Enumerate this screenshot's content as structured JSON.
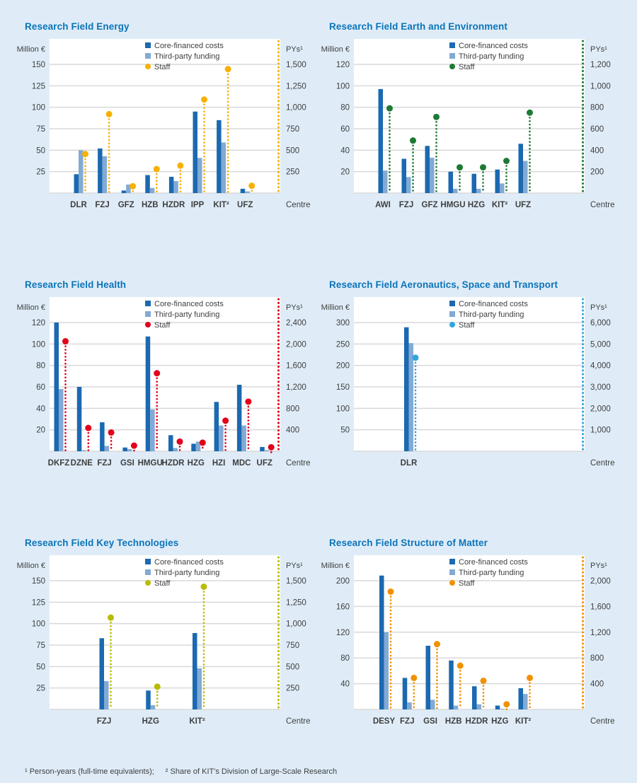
{
  "colors": {
    "page_background": "#dfecf8",
    "plot_background": "#ffffff",
    "grid": "#d9d9d9",
    "core_bar": "#1b69b0",
    "third_bar": "#82aad5",
    "title": "#0b74b8",
    "text": "#3e3e3e"
  },
  "legend": {
    "core": "Core-financed costs",
    "third": "Third-party funding",
    "staff": "Staff"
  },
  "axes": {
    "left": "Million €",
    "right": "PYs¹",
    "x": "Centre"
  },
  "footnote": {
    "part1": "¹ Person-years (full-time equivalents);",
    "part2": "² Share of KIT's Division of Large-Scale Research"
  },
  "chart_data": [
    {
      "type": "bar",
      "title": "Research Field Energy",
      "staff_color": "#f9b000",
      "left_ticks": [
        25,
        50,
        75,
        100,
        125,
        150
      ],
      "right_ticks": [
        "250",
        "500",
        "750",
        "1,000",
        "1,250",
        "1,500"
      ],
      "categories": [
        "DLR",
        "FZJ",
        "GFZ",
        "HZB",
        "HZDR",
        "IPP",
        "KIT²",
        "UFZ"
      ],
      "series": [
        {
          "name": "Core-financed costs",
          "axis": "left",
          "values": [
            22,
            52,
            3,
            21,
            19,
            95,
            85,
            5
          ]
        },
        {
          "name": "Third-party funding",
          "axis": "left",
          "values": [
            50,
            43,
            10,
            6,
            14,
            41,
            59,
            2
          ]
        },
        {
          "name": "Staff",
          "axis": "right",
          "values": [
            455,
            920,
            80,
            280,
            320,
            1090,
            1445,
            85
          ]
        }
      ],
      "layout": {
        "x_first": 91,
        "x_step": 33.6
      }
    },
    {
      "type": "bar",
      "title": "Research Field Earth and Environment",
      "staff_color": "#1d7a34",
      "left_ticks": [
        20,
        40,
        60,
        80,
        100,
        120
      ],
      "right_ticks": [
        "200",
        "400",
        "600",
        "800",
        "1,000",
        "1,200"
      ],
      "categories": [
        "AWI",
        "FZJ",
        "GFZ",
        "HMGU",
        "HZG",
        "KIT²",
        "UFZ"
      ],
      "series": [
        {
          "name": "Core-financed costs",
          "axis": "left",
          "values": [
            97,
            32,
            44,
            20,
            18,
            22,
            46
          ]
        },
        {
          "name": "Third-party funding",
          "axis": "left",
          "values": [
            21,
            15,
            33,
            4,
            4,
            9,
            30
          ]
        },
        {
          "name": "Staff",
          "axis": "right",
          "values": [
            790,
            490,
            710,
            240,
            240,
            300,
            750
          ]
        }
      ],
      "layout": {
        "x_first": 91,
        "x_step": 33
      }
    },
    {
      "type": "bar",
      "title": "Research Field Health",
      "staff_color": "#e2001a",
      "left_ticks": [
        20,
        40,
        60,
        80,
        100,
        120
      ],
      "right_ticks": [
        "400",
        "800",
        "1,200",
        "1,600",
        "2,000",
        "2,400"
      ],
      "categories": [
        "DKFZ",
        "DZNE",
        "FZJ",
        "GSI",
        "HMGU",
        "HZDR",
        "HZG",
        "HZI",
        "MDC",
        "UFZ"
      ],
      "series": [
        {
          "name": "Core-financed costs",
          "axis": "left",
          "values": [
            120,
            60,
            27,
            3.5,
            107,
            15,
            7,
            46,
            62,
            4
          ]
        },
        {
          "name": "Third-party funding",
          "axis": "left",
          "values": [
            58,
            1,
            5,
            2,
            39,
            3,
            9,
            24,
            24,
            1
          ]
        },
        {
          "name": "Staff",
          "axis": "right",
          "values": [
            2050,
            435,
            350,
            105,
            1455,
            180,
            160,
            570,
            925,
            75
          ]
        }
      ],
      "layout": {
        "x_first": 63,
        "x_step": 32.3
      }
    },
    {
      "type": "bar",
      "title": "Research Field Aeronautics, Space and Transport",
      "staff_color": "#2fa5dc",
      "left_ticks": [
        50,
        100,
        150,
        200,
        250,
        300
      ],
      "right_ticks": [
        "1,000",
        "2,000",
        "3,000",
        "4,000",
        "5,000",
        "6,000"
      ],
      "categories": [
        "DLR"
      ],
      "series": [
        {
          "name": "Core-financed costs",
          "axis": "left",
          "values": [
            289
          ]
        },
        {
          "name": "Third-party funding",
          "axis": "left",
          "values": [
            252
          ]
        },
        {
          "name": "Staff",
          "axis": "right",
          "values": [
            4360
          ]
        }
      ],
      "layout": {
        "x_first": 127.5,
        "x_step": 33
      }
    },
    {
      "type": "bar",
      "title": "Research Field Key Technologies",
      "staff_color": "#b8bc00",
      "left_ticks": [
        25,
        50,
        75,
        100,
        125,
        150
      ],
      "right_ticks": [
        "250",
        "500",
        "750",
        "1,000",
        "1,250",
        "1,500"
      ],
      "categories": [
        "FZJ",
        "HZG",
        "KIT²"
      ],
      "series": [
        {
          "name": "Core-financed costs",
          "axis": "left",
          "values": [
            83,
            22,
            89
          ]
        },
        {
          "name": "Third-party funding",
          "axis": "left",
          "values": [
            33,
            5,
            48
          ]
        },
        {
          "name": "Staff",
          "axis": "right",
          "values": [
            1070,
            265,
            1430
          ]
        }
      ],
      "layout": {
        "x_first": 127,
        "x_step": 65.75
      }
    },
    {
      "type": "bar",
      "title": "Research Field Structure of Matter",
      "staff_color": "#f29100",
      "left_ticks": [
        40,
        80,
        120,
        160,
        200
      ],
      "right_ticks": [
        "400",
        "800",
        "1,200",
        "1,600",
        "2,000"
      ],
      "categories": [
        "DESY",
        "FZJ",
        "GSI",
        "HZB",
        "HZDR",
        "HZG",
        "KIT²"
      ],
      "series": [
        {
          "name": "Core-financed costs",
          "axis": "left",
          "values": [
            208,
            49,
            99,
            76,
            36,
            6,
            33
          ]
        },
        {
          "name": "Third-party funding",
          "axis": "left",
          "values": [
            120,
            11,
            15,
            6,
            8,
            1,
            24
          ]
        },
        {
          "name": "Staff",
          "axis": "right",
          "values": [
            1830,
            490,
            1015,
            680,
            445,
            80,
            490
          ]
        }
      ],
      "layout": {
        "x_first": 92.5,
        "x_step": 32.75
      }
    }
  ]
}
